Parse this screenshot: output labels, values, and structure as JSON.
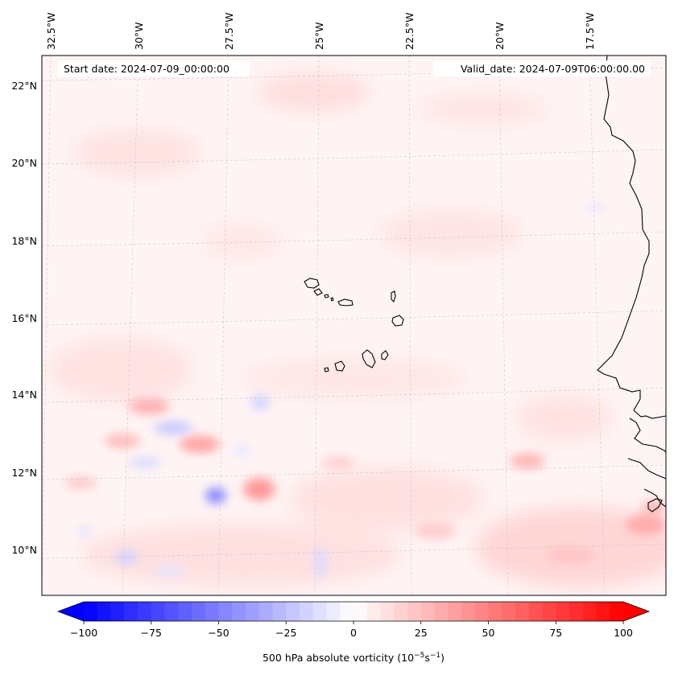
{
  "map": {
    "lon_labels": [
      "32.5°W",
      "30°W",
      "27.5°W",
      "25°W",
      "22.5°W",
      "20°W",
      "17.5°W"
    ],
    "lat_labels": [
      "22°N",
      "20°N",
      "18°N",
      "16°N",
      "14°N",
      "12°N",
      "10°N"
    ],
    "start_date": "Start date: 2024-07-09_00:00:00",
    "valid_date": "Valid_date: 2024-07-09T06:00:00.00"
  },
  "colorbar": {
    "ticks": [
      "−100",
      "−75",
      "−50",
      "−25",
      "0",
      "25",
      "50",
      "75",
      "100"
    ],
    "label_main": "500 hPa absolute vorticity (10",
    "label_exp1": "−5",
    "label_mid": "s",
    "label_exp2": "−1",
    "label_end": ")",
    "min": -100,
    "max": 100
  },
  "colors": {
    "negative": "#0000ff",
    "positive": "#ff0000",
    "coast": "#000000"
  }
}
